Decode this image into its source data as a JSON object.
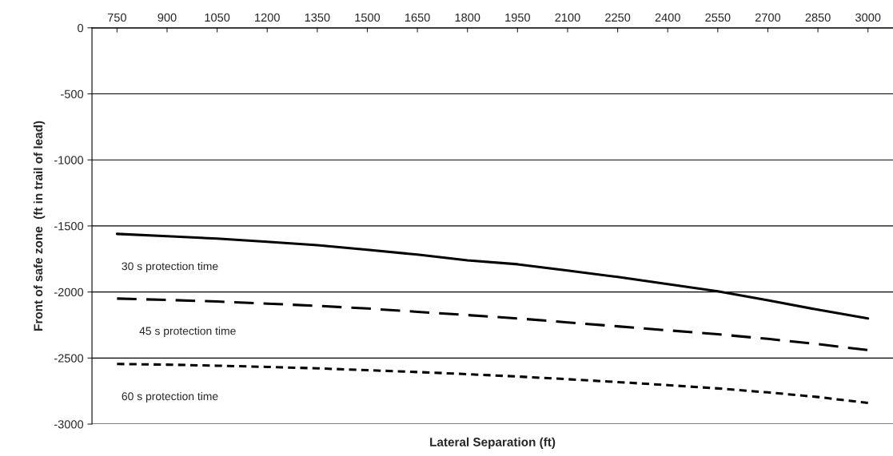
{
  "chart_data": {
    "type": "line",
    "xlabel": "Lateral Separation (ft)",
    "ylabel": "Front of safe zone  (ft in trail of lead)",
    "categories": [
      "750",
      "900",
      "1050",
      "1200",
      "1350",
      "1500",
      "1650",
      "1800",
      "1950",
      "2100",
      "2250",
      "2400",
      "2550",
      "2700",
      "2850",
      "3000"
    ],
    "ylim": [
      -3000,
      0
    ],
    "yticks": [
      0,
      -500,
      -1000,
      -1500,
      -2000,
      -2500,
      -3000
    ],
    "grid": "y",
    "legend": false,
    "marker": "none",
    "series": [
      {
        "name": "30 s protection time",
        "color": "#000000",
        "line_style": "solid",
        "values": [
          -1560,
          -1578,
          -1596,
          -1620,
          -1645,
          -1680,
          -1717,
          -1760,
          -1790,
          -1838,
          -1886,
          -1940,
          -1995,
          -2062,
          -2134,
          -2200
        ]
      },
      {
        "name": "45 s protection time",
        "color": "#000000",
        "line_style": "dashed",
        "values": [
          -2050,
          -2060,
          -2072,
          -2088,
          -2105,
          -2125,
          -2150,
          -2175,
          -2200,
          -2230,
          -2260,
          -2290,
          -2320,
          -2355,
          -2395,
          -2440
        ]
      },
      {
        "name": "60 s protection time",
        "color": "#000000",
        "line_style": "dotted",
        "values": [
          -2545,
          -2550,
          -2558,
          -2567,
          -2578,
          -2592,
          -2606,
          -2622,
          -2640,
          -2660,
          -2682,
          -2705,
          -2730,
          -2760,
          -2795,
          -2840
        ]
      }
    ]
  }
}
